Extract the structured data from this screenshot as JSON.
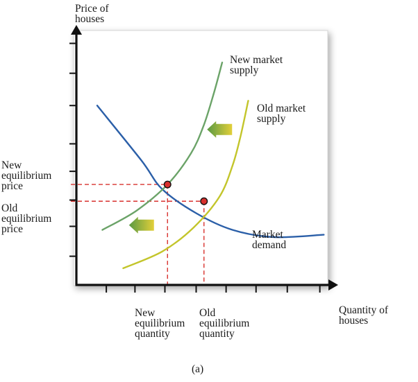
{
  "chart_data": {
    "type": "line",
    "caption": "(a)",
    "ylabel": [
      "Price of",
      "houses"
    ],
    "xlabel": [
      "Quantity of",
      "houses"
    ],
    "x_range": [
      0,
      10
    ],
    "y_range": [
      0,
      10
    ],
    "series": [
      {
        "name": "Market demand",
        "label_lines": [
          "Market",
          "demand"
        ],
        "color": "#2b5fa8",
        "points": [
          [
            0.8,
            7.5
          ],
          [
            2.5,
            5.2
          ],
          [
            3.3,
            4.0
          ],
          [
            4.6,
            3.0
          ],
          [
            6.0,
            2.3
          ],
          [
            7.6,
            2.0
          ],
          [
            9.5,
            2.1
          ]
        ]
      },
      {
        "name": "New market supply",
        "label_lines": [
          "New market",
          "supply"
        ],
        "color": "#6ba368",
        "points": [
          [
            1.0,
            2.3
          ],
          [
            2.3,
            3.1
          ],
          [
            3.5,
            4.2
          ],
          [
            4.4,
            5.5
          ],
          [
            4.9,
            6.7
          ],
          [
            5.3,
            8.1
          ],
          [
            5.6,
            9.3
          ]
        ]
      },
      {
        "name": "Old market supply",
        "label_lines": [
          "Old market",
          "supply"
        ],
        "color": "#c3c52b",
        "points": [
          [
            1.8,
            0.7
          ],
          [
            3.3,
            1.4
          ],
          [
            4.5,
            2.4
          ],
          [
            5.5,
            3.7
          ],
          [
            6.0,
            5.0
          ],
          [
            6.3,
            6.2
          ],
          [
            6.6,
            7.7
          ]
        ]
      }
    ],
    "equilibria": [
      {
        "id": "new",
        "x": 3.5,
        "y": 4.2,
        "price_label": [
          "New",
          "equilibrium",
          "price"
        ],
        "quantity_label": [
          "New",
          "equilibrium",
          "quantity"
        ]
      },
      {
        "id": "old",
        "x": 4.9,
        "y": 3.5,
        "price_label": [
          "Old",
          "equilibrium",
          "price"
        ],
        "quantity_label": [
          "Old",
          "equilibrium",
          "quantity"
        ]
      }
    ],
    "annotations": [
      {
        "type": "arrow-left",
        "x": 5.5,
        "y": 6.5,
        "meaning": "supply shift left"
      },
      {
        "type": "arrow-left",
        "x": 2.5,
        "y": 2.5,
        "meaning": "supply shift left"
      }
    ],
    "colors": {
      "axis": "#111111",
      "guide": "#d8302d",
      "point": "#d8302d",
      "arrow_start": "#e2cf39",
      "arrow_end": "#5a9a43",
      "panel": "#ffffff"
    }
  }
}
